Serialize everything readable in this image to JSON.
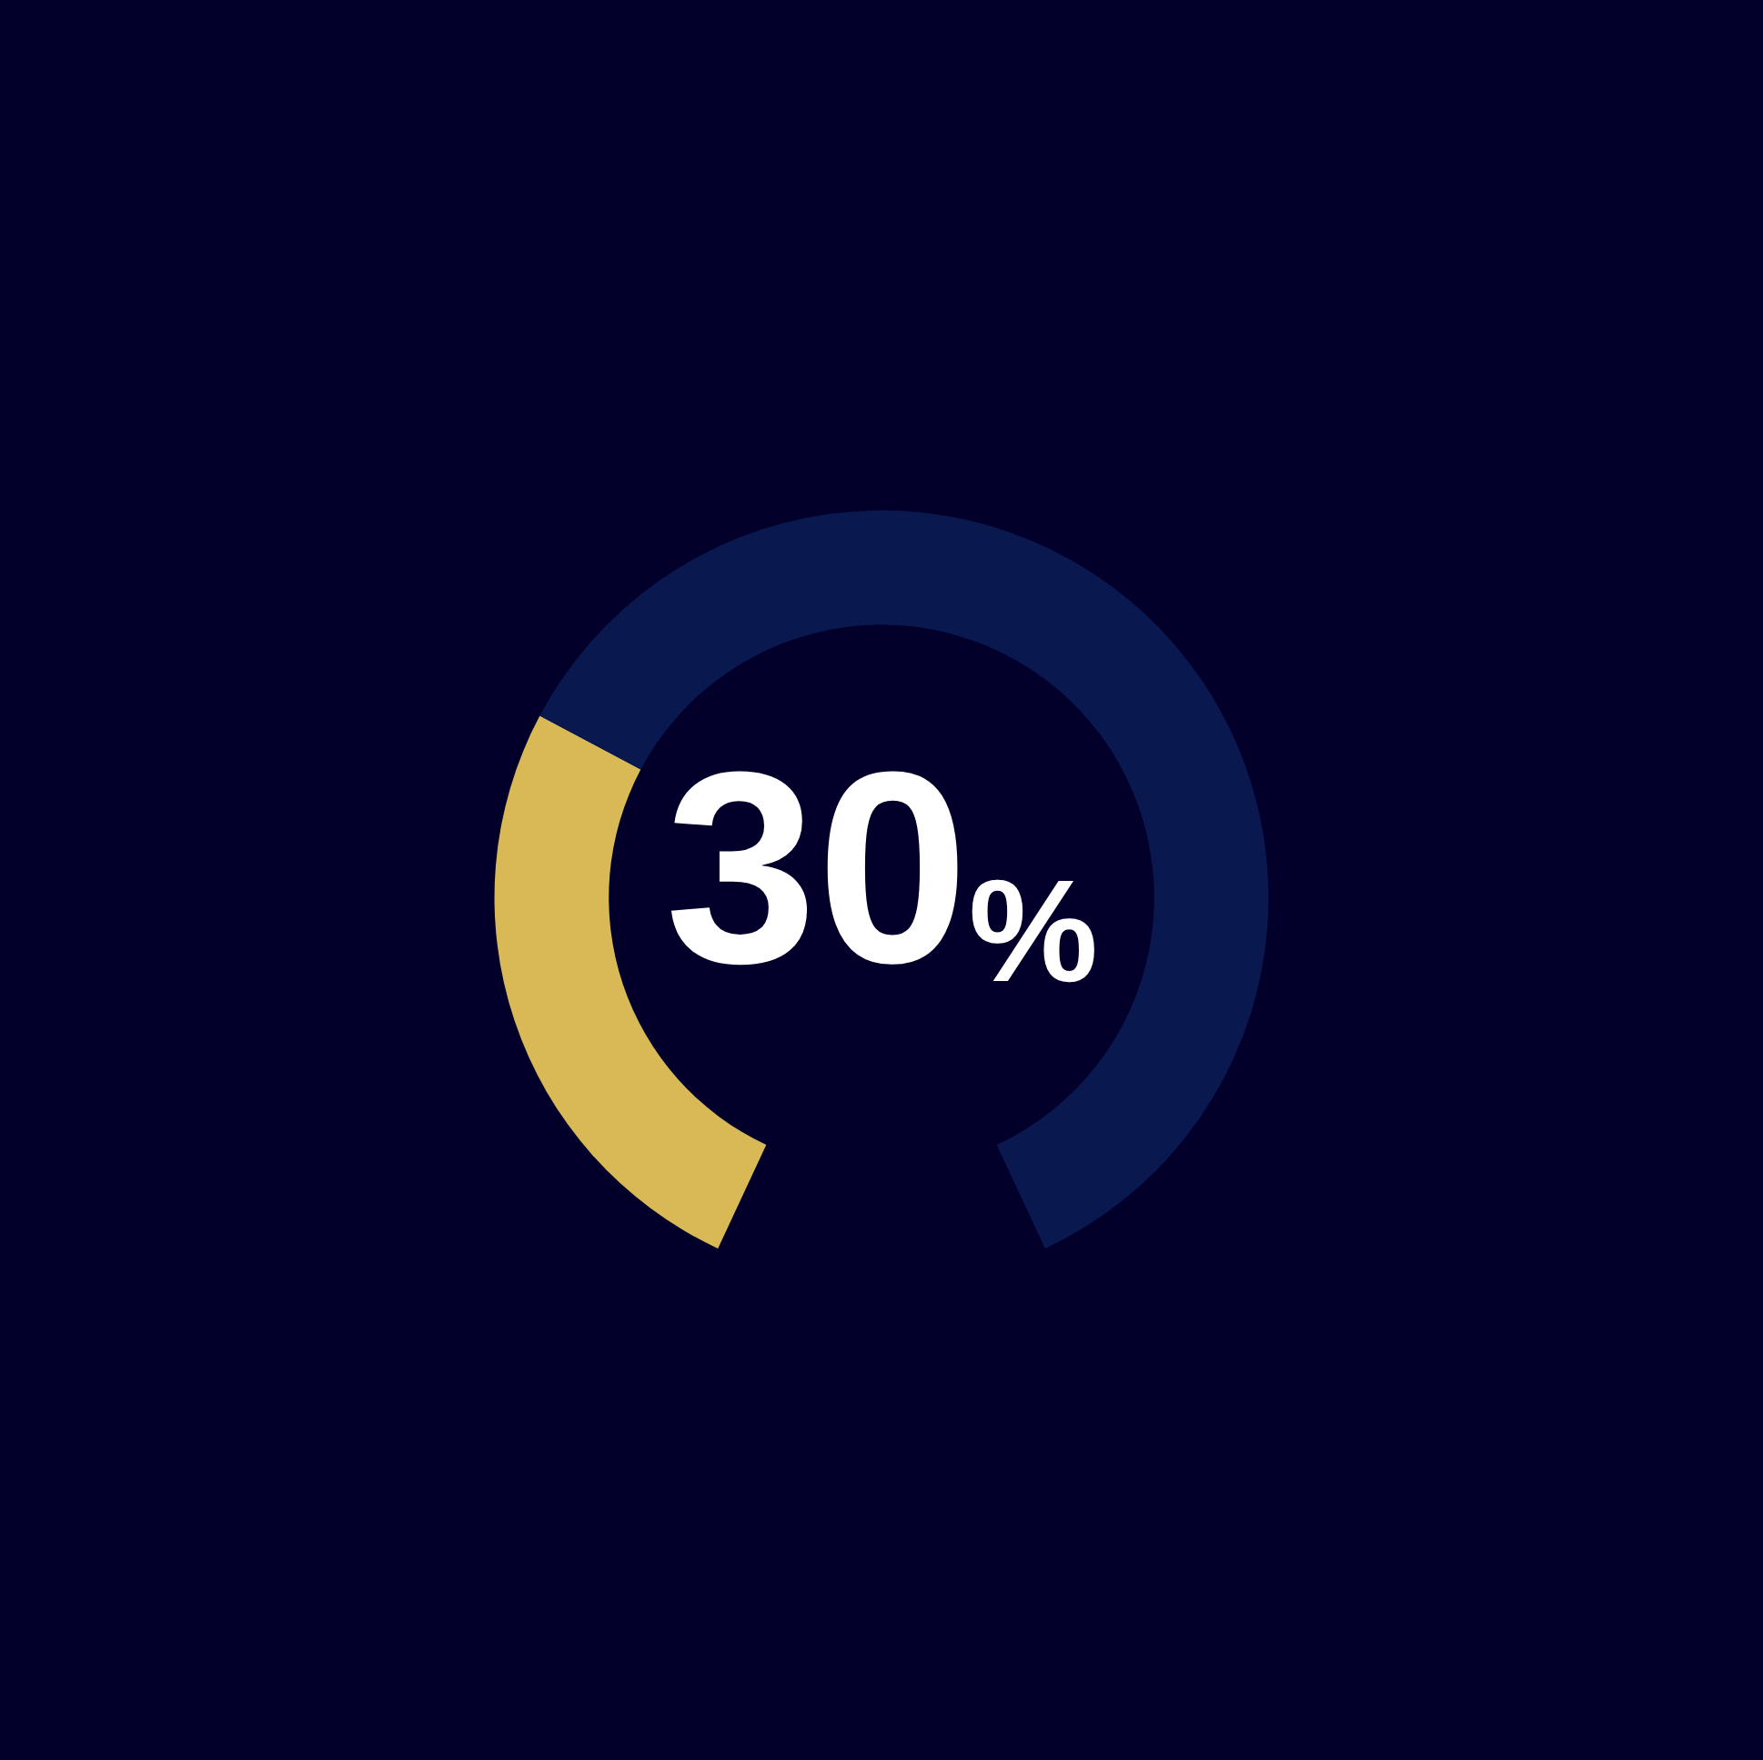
{
  "chart_data": {
    "type": "donut",
    "categories": [
      null,
      null
    ],
    "values": [
      30,
      70
    ],
    "colors": [
      "#d9b955",
      "#0a1850"
    ],
    "annotations": [
      "30%"
    ]
  }
}
